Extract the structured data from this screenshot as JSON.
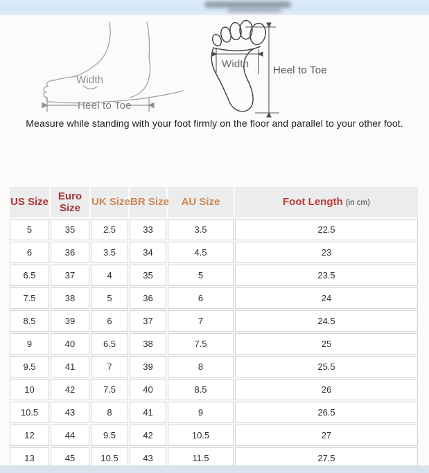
{
  "instruction": "Measure while standing with your foot firmly on the floor and parallel to your other foot.",
  "diagrams": {
    "side_view": {
      "width_label": "Width",
      "heel_to_toe_label": "Heel to Toe"
    },
    "sole_view": {
      "width_label": "Width",
      "heel_to_toe_label": "Heel to Toe"
    }
  },
  "size_table": {
    "columns": [
      {
        "label": "US Size",
        "color": "#ab3232"
      },
      {
        "label": "Euro Size",
        "color": "#ab3232"
      },
      {
        "label": "UK Size",
        "color": "#cd8755"
      },
      {
        "label": "BR Size",
        "color": "#cd8755"
      },
      {
        "label": "AU Size",
        "color": "#cd8755"
      },
      {
        "label": "Foot Length",
        "color": "#bd3b3b",
        "suffix": "(in cm)"
      }
    ],
    "rows": [
      [
        "5",
        "35",
        "2.5",
        "33",
        "3.5",
        "22.5"
      ],
      [
        "6",
        "36",
        "3.5",
        "34",
        "4.5",
        "23"
      ],
      [
        "6.5",
        "37",
        "4",
        "35",
        "5",
        "23.5"
      ],
      [
        "7.5",
        "38",
        "5",
        "36",
        "6",
        "24"
      ],
      [
        "8.5",
        "39",
        "6",
        "37",
        "7",
        "24.5"
      ],
      [
        "9",
        "40",
        "6.5",
        "38",
        "7.5",
        "25"
      ],
      [
        "9.5",
        "41",
        "7",
        "39",
        "8",
        "25.5"
      ],
      [
        "10",
        "42",
        "7.5",
        "40",
        "8.5",
        "26"
      ],
      [
        "10.5",
        "43",
        "8",
        "41",
        "9",
        "26.5"
      ],
      [
        "12",
        "44",
        "9.5",
        "42",
        "10.5",
        "27"
      ],
      [
        "13",
        "45",
        "10.5",
        "43",
        "11.5",
        "27.5"
      ]
    ]
  },
  "colors": {
    "top_bar": "#d9e8f6",
    "bottom_bar": "#d8e3ed",
    "header_bg": "#ececec",
    "red_header": "#ab3232",
    "orange_header": "#cd8755",
    "grid_line": "#d2d2d2"
  }
}
